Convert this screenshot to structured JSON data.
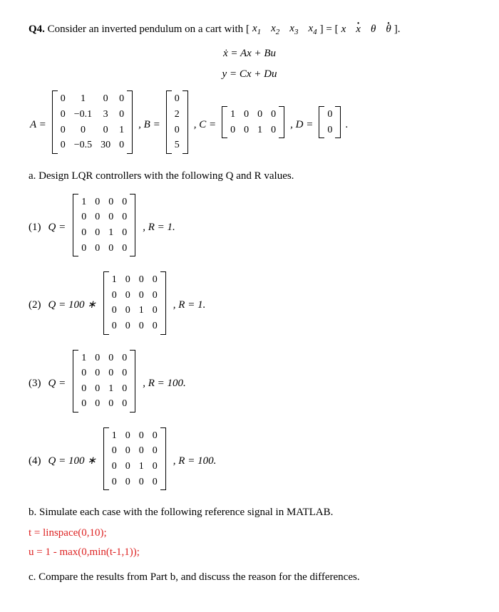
{
  "q_label": "Q4.",
  "q_intro": " Consider an inverted pendulum on a cart with ",
  "state_vec_lhs": [
    "x",
    "1",
    "x",
    "2",
    "x",
    "3",
    "x",
    "4"
  ],
  "state_vec_rhs_txt": [
    "x",
    "ẋ",
    "θ",
    "θ̇"
  ],
  "eq1": "ẋ = Ax + Bu",
  "eq2": "y = Cx + Du",
  "A_label": "A =",
  "A": [
    [
      "0",
      "1",
      "0",
      "0"
    ],
    [
      "0",
      "−0.1",
      "3",
      "0"
    ],
    [
      "0",
      "0",
      "0",
      "1"
    ],
    [
      "0",
      "−0.5",
      "30",
      "0"
    ]
  ],
  "B_label": ", B =",
  "B": [
    [
      "0"
    ],
    [
      "2"
    ],
    [
      "0"
    ],
    [
      "5"
    ]
  ],
  "C_label": ", C =",
  "C": [
    [
      "1",
      "0",
      "0",
      "0"
    ],
    [
      "0",
      "0",
      "1",
      "0"
    ]
  ],
  "D_label": ", D =",
  "D": [
    [
      "0"
    ],
    [
      "0"
    ]
  ],
  "period": ".",
  "part_a": "a. Design LQR controllers with the following Q and R values.",
  "cases": [
    {
      "idx": "(1)",
      "pre": "Q =",
      "mult": "",
      "R": ", R = 1."
    },
    {
      "idx": "(2)",
      "pre": "Q = 100 ∗",
      "mult": "",
      "R": ", R = 1."
    },
    {
      "idx": "(3)",
      "pre": "Q =",
      "mult": "",
      "R": ", R = 100."
    },
    {
      "idx": "(4)",
      "pre": "Q = 100 ∗",
      "mult": "",
      "R": ", R = 100."
    }
  ],
  "Qmat": [
    [
      "1",
      "0",
      "0",
      "0"
    ],
    [
      "0",
      "0",
      "0",
      "0"
    ],
    [
      "0",
      "0",
      "1",
      "0"
    ],
    [
      "0",
      "0",
      "0",
      "0"
    ]
  ],
  "part_b": "b. Simulate each case with the following reference signal in MATLAB.",
  "code1": "t = linspace(0,10);",
  "code2": "u = 1 - max(0,min(t-1,1));",
  "part_c": "c. Compare the results from Part b, and discuss the reason for the differences."
}
